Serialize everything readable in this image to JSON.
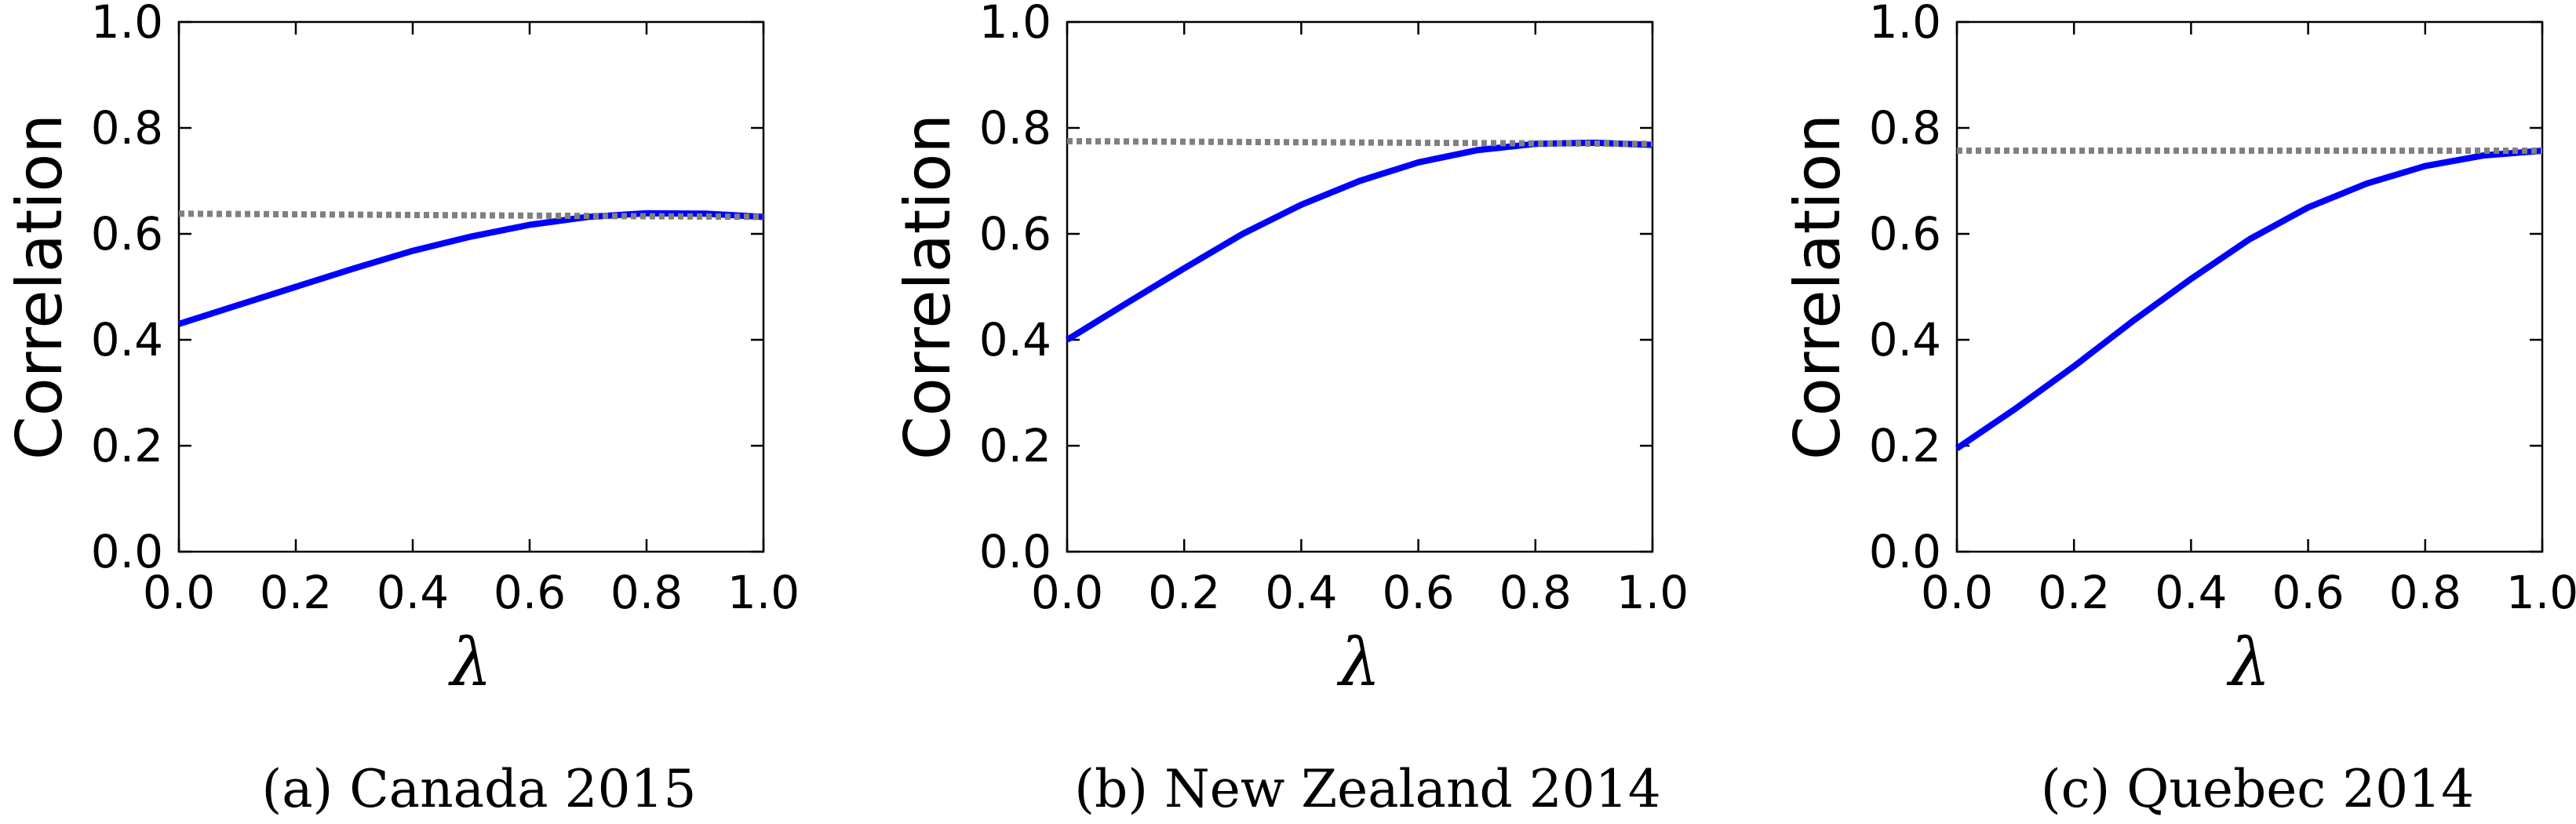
{
  "chart_data": [
    {
      "type": "line",
      "caption": "(a)  Canada 2015",
      "xlabel": "λ",
      "ylabel": "Correlation",
      "xlim": [
        0.0,
        1.0
      ],
      "ylim": [
        0.0,
        1.0
      ],
      "xticks": [
        "0.0",
        "0.2",
        "0.4",
        "0.6",
        "0.8",
        "1.0"
      ],
      "yticks": [
        "0.0",
        "0.2",
        "0.4",
        "0.6",
        "0.8",
        "1.0"
      ],
      "grid": false,
      "series": [
        {
          "style": "solid",
          "color": "#0000ff",
          "x": [
            0.0,
            0.1,
            0.2,
            0.3,
            0.4,
            0.5,
            0.6,
            0.7,
            0.8,
            0.9,
            1.0
          ],
          "y": [
            0.43,
            0.465,
            0.5,
            0.535,
            0.568,
            0.595,
            0.617,
            0.632,
            0.639,
            0.638,
            0.632
          ]
        },
        {
          "style": "dotted",
          "color": "#808080",
          "x": [
            0.0,
            1.0
          ],
          "y": [
            0.638,
            0.632
          ]
        }
      ]
    },
    {
      "type": "line",
      "caption": "(b)  New Zealand 2014",
      "xlabel": "λ",
      "ylabel": "Correlation",
      "xlim": [
        0.0,
        1.0
      ],
      "ylim": [
        0.0,
        1.0
      ],
      "xticks": [
        "0.0",
        "0.2",
        "0.4",
        "0.6",
        "0.8",
        "1.0"
      ],
      "yticks": [
        "0.0",
        "0.2",
        "0.4",
        "0.6",
        "0.8",
        "1.0"
      ],
      "grid": false,
      "series": [
        {
          "style": "solid",
          "color": "#0000ff",
          "x": [
            0.0,
            0.1,
            0.2,
            0.3,
            0.4,
            0.5,
            0.6,
            0.7,
            0.8,
            0.9,
            1.0
          ],
          "y": [
            0.4,
            0.468,
            0.535,
            0.6,
            0.655,
            0.7,
            0.735,
            0.758,
            0.77,
            0.772,
            0.768
          ]
        },
        {
          "style": "dotted",
          "color": "#808080",
          "x": [
            0.0,
            1.0
          ],
          "y": [
            0.775,
            0.77
          ]
        }
      ]
    },
    {
      "type": "line",
      "caption": "(c)  Quebec 2014",
      "xlabel": "λ",
      "ylabel": "Correlation",
      "xlim": [
        0.0,
        1.0
      ],
      "ylim": [
        0.0,
        1.0
      ],
      "xticks": [
        "0.0",
        "0.2",
        "0.4",
        "0.6",
        "0.8",
        "1.0"
      ],
      "yticks": [
        "0.0",
        "0.2",
        "0.4",
        "0.6",
        "0.8",
        "1.0"
      ],
      "grid": false,
      "series": [
        {
          "style": "solid",
          "color": "#0000ff",
          "x": [
            0.0,
            0.1,
            0.2,
            0.3,
            0.4,
            0.5,
            0.6,
            0.7,
            0.8,
            0.9,
            1.0
          ],
          "y": [
            0.195,
            0.27,
            0.35,
            0.435,
            0.515,
            0.59,
            0.65,
            0.695,
            0.728,
            0.748,
            0.757
          ]
        },
        {
          "style": "dotted",
          "color": "#808080",
          "x": [
            0.0,
            1.0
          ],
          "y": [
            0.757,
            0.757
          ]
        }
      ]
    }
  ]
}
